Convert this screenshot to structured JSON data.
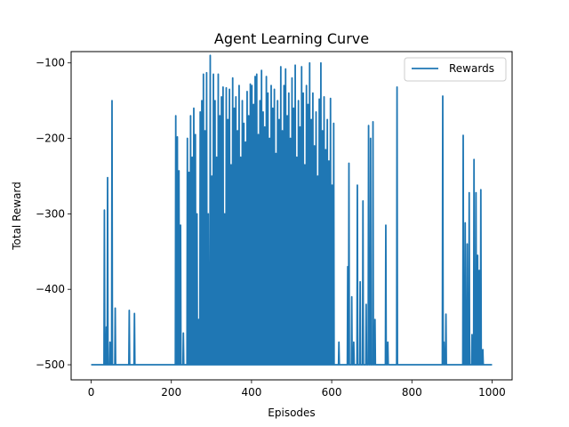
{
  "chart_data": {
    "type": "line",
    "title": "Agent Learning Curve",
    "xlabel": "Episodes",
    "ylabel": "Total Reward",
    "xlim": [
      -50,
      1050
    ],
    "ylim": [
      -520,
      -85
    ],
    "xticks": [
      0,
      200,
      400,
      600,
      800,
      1000
    ],
    "xtick_labels": [
      "0",
      "200",
      "400",
      "600",
      "800",
      "1000"
    ],
    "yticks": [
      -100,
      -200,
      -300,
      -400,
      -500
    ],
    "ytick_labels": [
      "−100",
      "−200",
      "−300",
      "−400",
      "−500"
    ],
    "grid": false,
    "legend": {
      "placement": "top-right"
    },
    "series": [
      {
        "name": "Rewards",
        "color": "#1f77b4",
        "baseline": -500,
        "x_start": 0,
        "x_end": 1000,
        "peaks": [
          [
            33,
            -295
          ],
          [
            38,
            -450
          ],
          [
            41,
            -252
          ],
          [
            47,
            -470
          ],
          [
            52,
            -150
          ],
          [
            60,
            -425
          ],
          [
            95,
            -428
          ],
          [
            108,
            -432
          ],
          [
            211,
            -170
          ],
          [
            215,
            -198
          ],
          [
            219,
            -243
          ],
          [
            223,
            -315
          ],
          [
            230,
            -458
          ],
          [
            240,
            -200
          ],
          [
            244,
            -245
          ],
          [
            248,
            -170
          ],
          [
            252,
            -225
          ],
          [
            256,
            -160
          ],
          [
            260,
            -195
          ],
          [
            264,
            -300
          ],
          [
            268,
            -440
          ],
          [
            272,
            -165
          ],
          [
            276,
            -150
          ],
          [
            280,
            -115
          ],
          [
            284,
            -190
          ],
          [
            288,
            -113
          ],
          [
            292,
            -300
          ],
          [
            297,
            -90
          ],
          [
            301,
            -250
          ],
          [
            305,
            -115
          ],
          [
            309,
            -150
          ],
          [
            313,
            -225
          ],
          [
            317,
            -115
          ],
          [
            321,
            -170
          ],
          [
            325,
            -145
          ],
          [
            329,
            -132
          ],
          [
            333,
            -300
          ],
          [
            337,
            -133
          ],
          [
            341,
            -175
          ],
          [
            345,
            -135
          ],
          [
            349,
            -235
          ],
          [
            353,
            -120
          ],
          [
            357,
            -160
          ],
          [
            361,
            -145
          ],
          [
            365,
            -190
          ],
          [
            369,
            -130
          ],
          [
            373,
            -225
          ],
          [
            377,
            -150
          ],
          [
            381,
            -180
          ],
          [
            385,
            -205
          ],
          [
            389,
            -138
          ],
          [
            393,
            -170
          ],
          [
            397,
            -128
          ],
          [
            401,
            -130
          ],
          [
            405,
            -155
          ],
          [
            409,
            -118
          ],
          [
            413,
            -115
          ],
          [
            417,
            -195
          ],
          [
            421,
            -150
          ],
          [
            425,
            -110
          ],
          [
            429,
            -165
          ],
          [
            433,
            -185
          ],
          [
            437,
            -118
          ],
          [
            441,
            -140
          ],
          [
            445,
            -200
          ],
          [
            449,
            -130
          ],
          [
            453,
            -160
          ],
          [
            457,
            -135
          ],
          [
            461,
            -220
          ],
          [
            465,
            -150
          ],
          [
            469,
            -175
          ],
          [
            473,
            -105
          ],
          [
            477,
            -190
          ],
          [
            481,
            -130
          ],
          [
            485,
            -108
          ],
          [
            489,
            -170
          ],
          [
            493,
            -140
          ],
          [
            497,
            -200
          ],
          [
            501,
            -120
          ],
          [
            505,
            -160
          ],
          [
            509,
            -103
          ],
          [
            513,
            -225
          ],
          [
            517,
            -150
          ],
          [
            521,
            -185
          ],
          [
            525,
            -105
          ],
          [
            529,
            -140
          ],
          [
            533,
            -235
          ],
          [
            537,
            -130
          ],
          [
            541,
            -155
          ],
          [
            545,
            -100
          ],
          [
            549,
            -175
          ],
          [
            553,
            -140
          ],
          [
            557,
            -210
          ],
          [
            561,
            -165
          ],
          [
            565,
            -250
          ],
          [
            569,
            -148
          ],
          [
            573,
            -100
          ],
          [
            577,
            -190
          ],
          [
            581,
            -145
          ],
          [
            585,
            -215
          ],
          [
            589,
            -175
          ],
          [
            593,
            -230
          ],
          [
            597,
            -147
          ],
          [
            601,
            -262
          ],
          [
            605,
            -180
          ],
          [
            618,
            -470
          ],
          [
            640,
            -370
          ],
          [
            643,
            -233
          ],
          [
            650,
            -410
          ],
          [
            655,
            -470
          ],
          [
            664,
            -262
          ],
          [
            671,
            -390
          ],
          [
            678,
            -283
          ],
          [
            686,
            -420
          ],
          [
            692,
            -183
          ],
          [
            697,
            -200
          ],
          [
            703,
            -178
          ],
          [
            708,
            -440
          ],
          [
            735,
            -315
          ],
          [
            740,
            -470
          ],
          [
            763,
            -132
          ],
          [
            877,
            -144
          ],
          [
            880,
            -470
          ],
          [
            885,
            -433
          ],
          [
            928,
            -196
          ],
          [
            933,
            -312
          ],
          [
            938,
            -340
          ],
          [
            943,
            -272
          ],
          [
            950,
            -460
          ],
          [
            955,
            -228
          ],
          [
            960,
            -272
          ],
          [
            964,
            -355
          ],
          [
            968,
            -375
          ],
          [
            972,
            -268
          ],
          [
            977,
            -480
          ]
        ]
      }
    ]
  }
}
